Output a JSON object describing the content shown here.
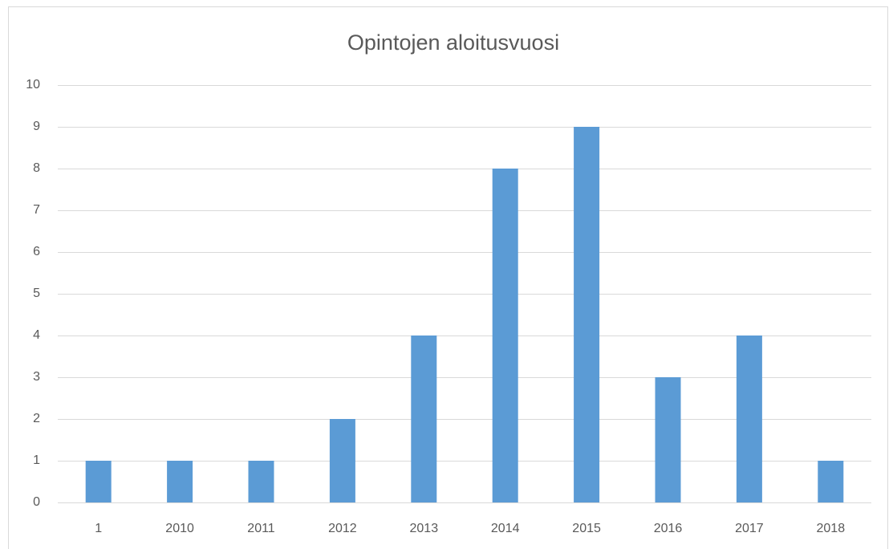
{
  "chart_data": {
    "type": "bar",
    "title": "Opintojen aloitusvuosi",
    "categories": [
      "1",
      "2010",
      "2011",
      "2012",
      "2013",
      "2014",
      "2015",
      "2016",
      "2017",
      "2018"
    ],
    "values": [
      1,
      1,
      1,
      2,
      4,
      8,
      9,
      3,
      4,
      1
    ],
    "color": "#5b9bd5",
    "ylim": [
      0,
      10
    ],
    "yticks": [
      0,
      1,
      2,
      3,
      4,
      5,
      6,
      7,
      8,
      9,
      10
    ],
    "grid": true
  }
}
